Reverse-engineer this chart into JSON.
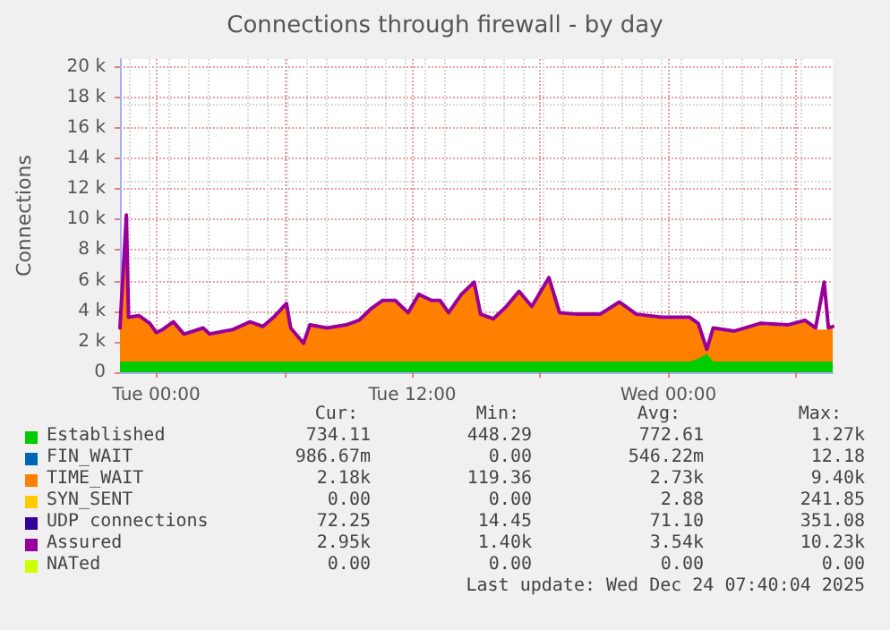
{
  "chart_data": {
    "type": "area",
    "title": "Connections through firewall - by day",
    "ylabel": "Connections",
    "stacked": true,
    "grid": true,
    "legend": "bottom",
    "marker": "none",
    "x": [
      "2025-12-22T22:18",
      "2025-12-22T22:36",
      "2025-12-22T22:42",
      "2025-12-22T23:12",
      "2025-12-22T23:42",
      "2025-12-23T00:00",
      "2025-12-23T00:18",
      "2025-12-23T00:48",
      "2025-12-23T01:18",
      "2025-12-23T02:12",
      "2025-12-23T02:30",
      "2025-12-23T03:36",
      "2025-12-23T04:24",
      "2025-12-23T05:00",
      "2025-12-23T05:30",
      "2025-12-23T06:06",
      "2025-12-23T06:18",
      "2025-12-23T06:54",
      "2025-12-23T07:12",
      "2025-12-23T08:00",
      "2025-12-23T08:54",
      "2025-12-23T09:30",
      "2025-12-23T10:06",
      "2025-12-23T10:36",
      "2025-12-23T11:12",
      "2025-12-23T11:48",
      "2025-12-23T12:18",
      "2025-12-23T12:54",
      "2025-12-23T13:18",
      "2025-12-23T13:42",
      "2025-12-23T14:18",
      "2025-12-23T14:54",
      "2025-12-23T15:12",
      "2025-12-23T15:48",
      "2025-12-23T16:24",
      "2025-12-23T17:00",
      "2025-12-23T17:36",
      "2025-12-23T18:24",
      "2025-12-23T18:54",
      "2025-12-23T19:42",
      "2025-12-23T20:48",
      "2025-12-23T21:42",
      "2025-12-23T22:30",
      "2025-12-23T23:42",
      "2025-12-24T01:00",
      "2025-12-24T01:24",
      "2025-12-24T01:48",
      "2025-12-24T02:06",
      "2025-12-24T03:06",
      "2025-12-24T04:18",
      "2025-12-24T05:36",
      "2025-12-24T06:24",
      "2025-12-24T06:54",
      "2025-12-24T07:18",
      "2025-12-24T07:30",
      "2025-12-24T07:42"
    ],
    "xlim": [
      "2025-12-22T22:18",
      "2025-12-24T07:42"
    ],
    "xticks": [
      {
        "value": "2025-12-23T00:00",
        "label": "Tue 00:00"
      },
      {
        "value": "2025-12-23T06:00",
        "label": null
      },
      {
        "value": "2025-12-23T12:00",
        "label": "Tue 12:00"
      },
      {
        "value": "2025-12-23T18:00",
        "label": null
      },
      {
        "value": "2025-12-24T00:00",
        "label": "Wed 00:00"
      },
      {
        "value": "2025-12-24T06:00",
        "label": null
      }
    ],
    "ylim": [
      0,
      20.5
    ],
    "yticks": [
      0,
      {
        "value": 2,
        "label": "2 k"
      },
      {
        "value": 4,
        "label": "4 k"
      },
      {
        "value": 6,
        "label": "6 k"
      },
      {
        "value": 8,
        "label": "8 k"
      },
      {
        "value": 10,
        "label": "10 k"
      },
      {
        "value": 12,
        "label": "12 k"
      },
      {
        "value": 14,
        "label": "14 k"
      },
      {
        "value": 16,
        "label": "16 k"
      },
      {
        "value": 18,
        "label": "18 k"
      },
      {
        "value": 20,
        "label": "20 k"
      }
    ],
    "series": [
      {
        "name": "Established",
        "color": "#00cc00",
        "values": [
          0.7,
          0.7,
          0.7,
          0.7,
          0.7,
          0.7,
          0.7,
          0.7,
          0.7,
          0.7,
          0.7,
          0.7,
          0.7,
          0.7,
          0.7,
          0.7,
          0.7,
          0.7,
          0.7,
          0.7,
          0.7,
          0.7,
          0.7,
          0.7,
          0.7,
          0.7,
          0.7,
          0.7,
          0.7,
          0.7,
          0.7,
          0.7,
          0.7,
          0.7,
          0.7,
          0.7,
          0.7,
          0.7,
          0.7,
          0.7,
          0.7,
          0.7,
          0.7,
          0.7,
          0.7,
          0.9,
          1.2,
          0.7,
          0.7,
          0.7,
          0.7,
          0.7,
          0.7,
          0.7,
          0.7,
          0.7
        ]
      },
      {
        "name": "FIN_WAIT",
        "color": "#0066b3",
        "values": [
          null,
          null,
          null,
          null,
          null,
          null,
          null,
          null,
          null,
          null,
          null,
          null,
          null,
          null,
          null,
          null,
          null,
          null,
          null,
          null,
          null,
          null,
          null,
          null,
          null,
          null,
          null,
          null,
          null,
          null,
          null,
          null,
          null,
          null,
          null,
          null,
          null,
          null,
          null,
          null,
          null,
          null,
          null,
          null,
          null,
          null,
          null,
          null,
          null,
          null,
          null,
          null,
          null,
          null,
          null,
          null
        ]
      },
      {
        "name": "TIME_WAIT",
        "color": "#ff8000",
        "values": [
          2.1,
          9.4,
          2.8,
          2.9,
          2.4,
          1.8,
          2.0,
          2.5,
          1.7,
          2.1,
          1.7,
          2.0,
          2.5,
          2.2,
          2.8,
          3.7,
          2.1,
          1.1,
          2.3,
          2.1,
          2.3,
          2.6,
          3.4,
          3.9,
          3.9,
          3.1,
          4.3,
          3.9,
          3.9,
          3.1,
          4.3,
          5.1,
          3.0,
          2.7,
          3.5,
          4.5,
          3.5,
          5.4,
          3.1,
          3.0,
          3.0,
          3.8,
          3.0,
          2.8,
          2.8,
          2.2,
          0.2,
          2.1,
          1.9,
          2.4,
          2.3,
          2.6,
          2.1,
          2.1,
          2.1,
          2.2
        ]
      },
      {
        "name": "SYN_SENT",
        "color": "#ffcc00",
        "values": [
          null,
          null,
          null,
          null,
          null,
          null,
          null,
          null,
          null,
          null,
          null,
          null,
          null,
          null,
          null,
          null,
          null,
          null,
          null,
          null,
          null,
          null,
          null,
          null,
          null,
          null,
          null,
          null,
          null,
          null,
          null,
          null,
          null,
          null,
          null,
          null,
          null,
          null,
          null,
          null,
          null,
          null,
          null,
          null,
          null,
          null,
          null,
          null,
          null,
          null,
          null,
          null,
          null,
          null,
          null,
          null
        ]
      },
      {
        "name": "UDP connections",
        "color": "#330099",
        "values": [
          null,
          null,
          null,
          null,
          null,
          null,
          null,
          null,
          null,
          null,
          null,
          null,
          null,
          null,
          null,
          null,
          null,
          null,
          null,
          null,
          null,
          null,
          null,
          null,
          null,
          null,
          null,
          null,
          null,
          null,
          null,
          null,
          null,
          null,
          null,
          null,
          null,
          null,
          null,
          null,
          null,
          null,
          null,
          null,
          null,
          null,
          null,
          null,
          null,
          null,
          null,
          null,
          null,
          null,
          null,
          null
        ]
      },
      {
        "name": "Assured",
        "type": "line",
        "color": "#990099",
        "values": [
          2.9,
          10.3,
          3.6,
          3.7,
          3.2,
          2.6,
          2.8,
          3.3,
          2.5,
          2.9,
          2.5,
          2.8,
          3.3,
          3.0,
          3.6,
          4.5,
          2.9,
          1.9,
          3.1,
          2.9,
          3.1,
          3.4,
          4.2,
          4.7,
          4.7,
          3.9,
          5.1,
          4.7,
          4.7,
          3.9,
          5.1,
          5.9,
          3.8,
          3.5,
          4.3,
          5.3,
          4.3,
          6.2,
          3.9,
          3.8,
          3.8,
          4.6,
          3.8,
          3.6,
          3.6,
          3.2,
          1.5,
          2.9,
          2.7,
          3.2,
          3.1,
          3.4,
          2.9,
          5.9,
          2.9,
          3.0
        ]
      },
      {
        "name": "NATed",
        "type": "line",
        "color": "#ccff00",
        "values": [
          null,
          null,
          null,
          null,
          null,
          null,
          null,
          null,
          null,
          null,
          null,
          null,
          null,
          null,
          null,
          null,
          null,
          null,
          null,
          null,
          null,
          null,
          null,
          null,
          null,
          null,
          null,
          null,
          null,
          null,
          null,
          null,
          null,
          null,
          null,
          null,
          null,
          null,
          null,
          null,
          null,
          null,
          null,
          null,
          null,
          null,
          null,
          null,
          null,
          null,
          null,
          null,
          null,
          null,
          null,
          null
        ]
      }
    ],
    "annotations": [
      "Cur:",
      "Min:",
      "Avg:",
      "Max:",
      "734.11",
      "448.29",
      "772.61",
      "1.27k",
      "986.67m",
      "0.00",
      "546.22m",
      "12.18",
      "2.18k",
      "119.36",
      "2.73k",
      "9.40k",
      "0.00",
      "0.00",
      "2.88",
      "241.85",
      "72.25",
      "14.45",
      "71.10",
      "351.08",
      "2.95k",
      "1.40k",
      "3.54k",
      "10.23k",
      "0.00",
      "0.00",
      "0.00",
      "0.00",
      "Last update: Wed Dec 24 07:40:04 2025"
    ]
  }
}
